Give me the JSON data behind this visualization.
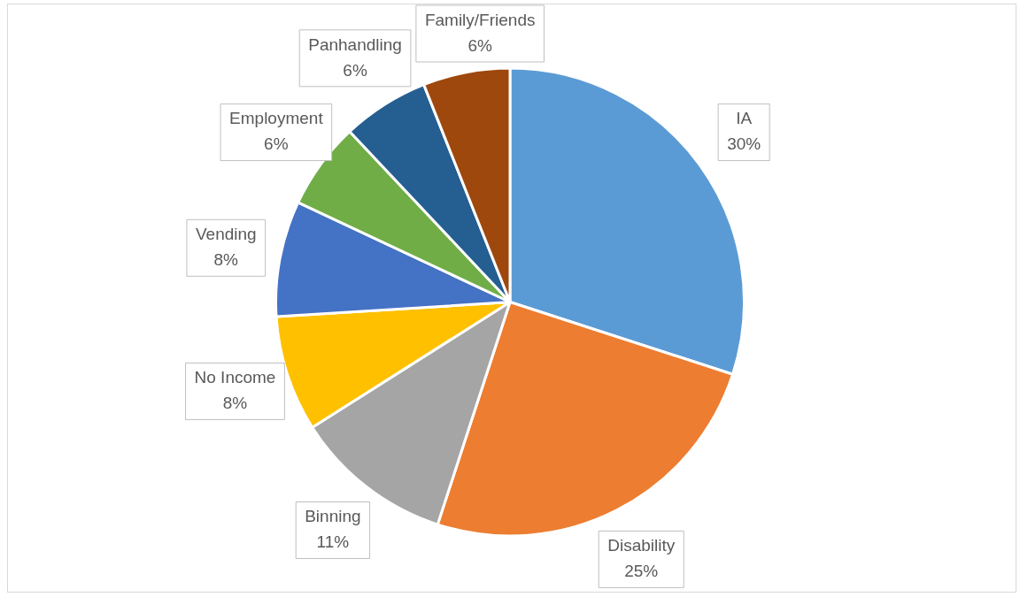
{
  "chart_data": {
    "type": "pie",
    "categories": [
      "IA",
      "Disability",
      "Binning",
      "No Income",
      "Vending",
      "Employment",
      "Panhandling",
      "Family/Friends"
    ],
    "values": [
      30,
      25,
      11,
      8,
      8,
      6,
      6,
      6
    ],
    "colors": [
      "#5b9bd5",
      "#ed7d31",
      "#a5a5a5",
      "#ffc000",
      "#4472c4",
      "#70ad47",
      "#255e91",
      "#9e480e"
    ],
    "value_labels": [
      "30%",
      "25%",
      "11%",
      "8%",
      "8%",
      "6%",
      "6%",
      "6%"
    ],
    "legend": false
  }
}
